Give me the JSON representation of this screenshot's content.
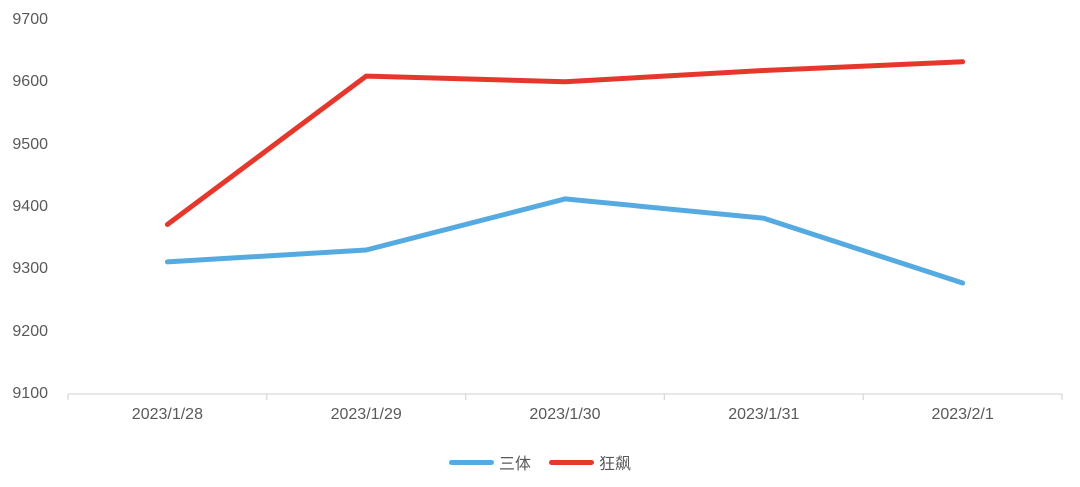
{
  "chart_data": {
    "type": "line",
    "title": "",
    "categories": [
      "2023/1/28",
      "2023/1/29",
      "2023/1/30",
      "2023/1/31",
      "2023/2/1"
    ],
    "series": [
      {
        "name": "三体",
        "color": "#55AAE1",
        "values": [
          9312,
          9331,
          9413,
          9382,
          9278
        ]
      },
      {
        "name": "狂飙",
        "color": "#E6372D",
        "values": [
          9372,
          9610,
          9601,
          9619,
          9633
        ]
      }
    ],
    "xlabel": "",
    "ylabel": "",
    "ylim": [
      9100,
      9700
    ],
    "y_step": 100,
    "y_tick_labels": [
      "9100",
      "9200",
      "9300",
      "9400",
      "9500",
      "9600",
      "9700"
    ],
    "grid": false,
    "legend_position": "bottom",
    "colors": {
      "text": "#595959",
      "axis_line": "#D9D9D9",
      "background": "#FFFFFF"
    }
  }
}
